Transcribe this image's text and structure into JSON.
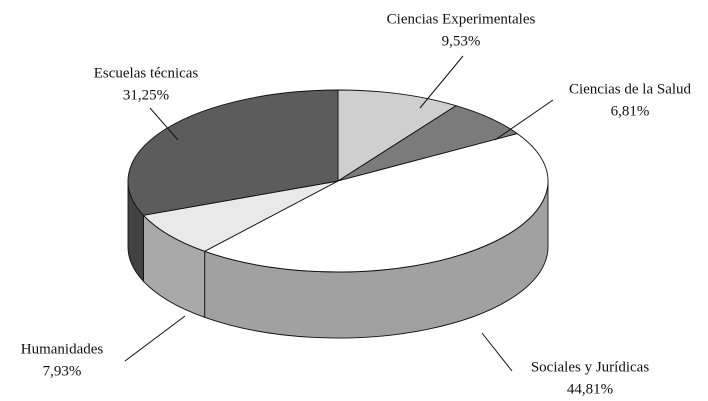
{
  "chart_data": {
    "type": "pie",
    "categories": [
      "Ciencias Experimentales",
      "Ciencias de la Salud",
      "Sociales y Jurídicas",
      "Humanidades",
      "Escuelas técnicas"
    ],
    "values": [
      9.53,
      6.81,
      44.81,
      7.93,
      31.25
    ],
    "value_labels": [
      "9,53%",
      "6,81%",
      "44,81%",
      "7,93%",
      "31,25%"
    ],
    "colors": [
      "#cfcfcf",
      "#7b7b7b",
      "#ffffff",
      "#e9e9e9",
      "#5c5c5c"
    ],
    "three_d": true
  }
}
